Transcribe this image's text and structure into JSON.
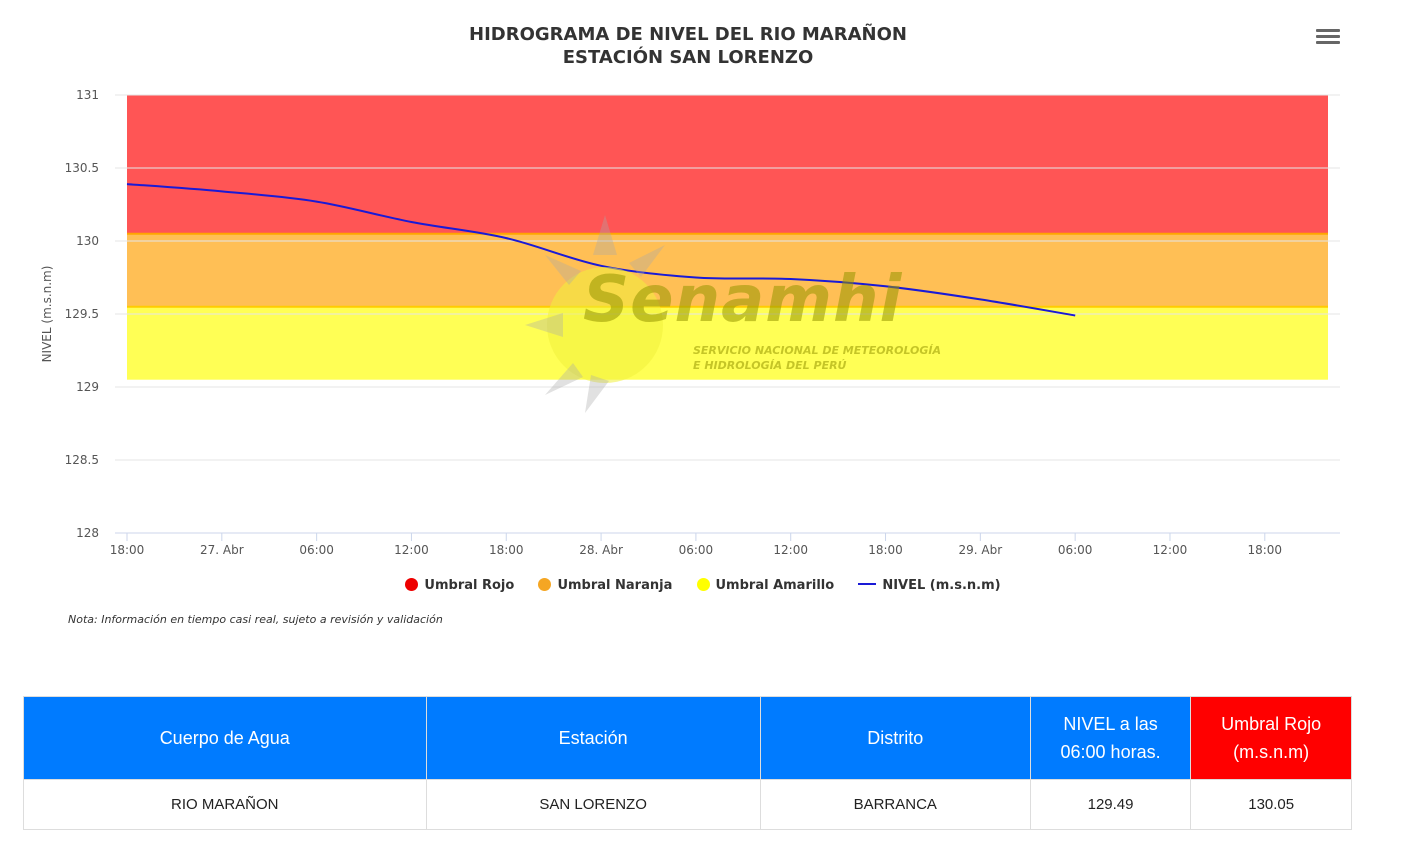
{
  "chart_data": {
    "type": "line",
    "title": "HIDROGRAMA DE NIVEL DEL RIO MARAÑON",
    "subtitle": "ESTACIÓN SAN LORENZO",
    "ylabel": "NIVEL (m.s.n.m)",
    "ylim": [
      128,
      131
    ],
    "yticks": [
      "128",
      "128.5",
      "129",
      "129.5",
      "130",
      "130.5",
      "131"
    ],
    "xlim": [
      "2024-04-26 18:00",
      "2024-04-29 22:00"
    ],
    "xticks": [
      {
        "x": "2024-04-26 18:00",
        "label": "18:00"
      },
      {
        "x": "2024-04-27 00:00",
        "label": "27. Abr"
      },
      {
        "x": "2024-04-27 06:00",
        "label": "06:00"
      },
      {
        "x": "2024-04-27 12:00",
        "label": "12:00"
      },
      {
        "x": "2024-04-27 18:00",
        "label": "18:00"
      },
      {
        "x": "2024-04-28 00:00",
        "label": "28. Abr"
      },
      {
        "x": "2024-04-28 06:00",
        "label": "06:00"
      },
      {
        "x": "2024-04-28 12:00",
        "label": "12:00"
      },
      {
        "x": "2024-04-28 18:00",
        "label": "18:00"
      },
      {
        "x": "2024-04-29 00:00",
        "label": "29. Abr"
      },
      {
        "x": "2024-04-29 06:00",
        "label": "06:00"
      },
      {
        "x": "2024-04-29 12:00",
        "label": "12:00"
      },
      {
        "x": "2024-04-29 18:00",
        "label": "18:00"
      }
    ],
    "bands": [
      {
        "name": "Umbral Rojo",
        "color": "#ff5555",
        "from": 130.05,
        "to": 131
      },
      {
        "name": "Umbral Naranja",
        "color": "#ffbf55",
        "from": 129.55,
        "to": 130.05
      },
      {
        "name": "Umbral Amarillo",
        "color": "#ffff55",
        "from": 129.05,
        "to": 129.55
      }
    ],
    "series": [
      {
        "name": "NIVEL (m.s.n.m)",
        "color": "#1a1ad6",
        "points": [
          {
            "x": "2024-04-26 18:00",
            "y": 130.39
          },
          {
            "x": "2024-04-27 00:00",
            "y": 130.34
          },
          {
            "x": "2024-04-27 06:00",
            "y": 130.27
          },
          {
            "x": "2024-04-27 12:00",
            "y": 130.13
          },
          {
            "x": "2024-04-27 18:00",
            "y": 130.02
          },
          {
            "x": "2024-04-28 00:00",
            "y": 129.83
          },
          {
            "x": "2024-04-28 06:00",
            "y": 129.75
          },
          {
            "x": "2024-04-28 12:00",
            "y": 129.74
          },
          {
            "x": "2024-04-28 18:00",
            "y": 129.69
          },
          {
            "x": "2024-04-29 00:00",
            "y": 129.6
          },
          {
            "x": "2024-04-29 06:00",
            "y": 129.49
          }
        ]
      }
    ],
    "legend": {
      "position": "bottom",
      "items": [
        {
          "label": "Umbral Rojo",
          "color": "#ee0000",
          "kind": "dot"
        },
        {
          "label": "Umbral Naranja",
          "color": "#f5a623",
          "kind": "dot"
        },
        {
          "label": "Umbral Amarillo",
          "color": "#ffff00",
          "kind": "dot"
        },
        {
          "label": "NIVEL (m.s.n.m)",
          "color": "#1a1ad6",
          "kind": "line"
        }
      ]
    },
    "grid": true
  },
  "watermark": {
    "brand": "Senamhi",
    "line1": "SERVICIO NACIONAL DE METEOROLOGÍA",
    "line2": "E HIDROLOGÍA DEL PERÚ"
  },
  "note": "Nota: Información en tiempo casi real, sujeto a revisión y validación",
  "table": {
    "headers": [
      {
        "label": "Cuerpo de Agua",
        "color": "#007bff"
      },
      {
        "label": "Estación",
        "color": "#007bff"
      },
      {
        "label": "Distrito",
        "color": "#007bff"
      },
      {
        "label": "NIVEL a las 06:00 horas.",
        "color": "#007bff"
      },
      {
        "label": "Umbral Rojo (m.s.n.m)",
        "color": "#ff0000"
      }
    ],
    "row": [
      "RIO MARAÑON",
      "SAN LORENZO",
      "BARRANCA",
      "129.49",
      "130.05"
    ]
  }
}
